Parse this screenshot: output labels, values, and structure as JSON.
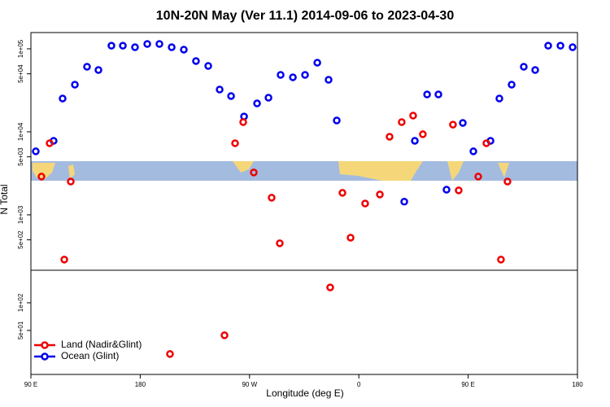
{
  "chart_data": [
    {
      "type": "scatter",
      "title": "10N-20N May (Ver 11.1)   2014-09-06 to 2023-04-30",
      "ylabel": "N Total",
      "xlabel": "Longitude (deg E)",
      "log_y": true,
      "xlim": [
        90,
        540
      ],
      "ylim": [
        215,
        157000
      ],
      "yticks": [
        {
          "value": 100000,
          "label": "1e+05"
        },
        {
          "value": 50000,
          "label": "5e+04"
        },
        {
          "value": 10000,
          "label": "1e+04"
        },
        {
          "value": 5000,
          "label": "5e+03"
        },
        {
          "value": 1000,
          "label": "1e+03"
        },
        {
          "value": 500,
          "label": "5e+02"
        }
      ],
      "series": [
        {
          "color": "#0000ee",
          "x": [
            94.0,
            108.7,
            116.1,
            126.2,
            136.2,
            145.6,
            156.3,
            165.7,
            175.7,
            185.8,
            195.8,
            205.9,
            215.9,
            225.9,
            236.0,
            245.4,
            254.8,
            265.5,
            276.2,
            285.6,
            295.6,
            305.7,
            315.7,
            325.8,
            335.1,
            341.8,
            397.4,
            406.1,
            416.2,
            425.5,
            432.2,
            445.6,
            454.3,
            468.4,
            475.7,
            485.8,
            495.8,
            505.2,
            515.9,
            526.0,
            536.0
          ],
          "values": [
            5820,
            7800,
            25200,
            37000,
            60800,
            55600,
            109000,
            109000,
            104600,
            114500,
            114500,
            104600,
            97800,
            71300,
            62200,
            32300,
            27000,
            15300,
            22000,
            25800,
            48500,
            45400,
            48500,
            68100,
            42400,
            13700,
            1440,
            7800,
            28200,
            28200,
            2010,
            12800,
            5820,
            7800,
            25200,
            37000,
            60800,
            55600,
            109000,
            109000,
            104600
          ]
        },
        {
          "color": "#ee0000",
          "x": [
            98.7,
            105.4,
            122.8,
            117.5,
            258.1,
            264.8,
            273.5,
            288.2,
            294.9,
            346.5,
            353.2,
            365.2,
            377.3,
            385.3,
            395.3,
            404.7,
            412.7,
            437.5,
            442.2,
            458.3,
            465.0,
            482.4,
            477.0
          ],
          "values": [
            2890,
            7290,
            2520,
            289,
            7290,
            13100,
            3240,
            1610,
            454,
            1840,
            531,
            1370,
            1760,
            8730,
            13100,
            15700,
            9350,
            12200,
            1970,
            2890,
            7290,
            2520,
            289
          ]
        }
      ]
    },
    {
      "type": "scatter",
      "log_y": true,
      "xlim": [
        90,
        540
      ],
      "ylim": [
        16.6,
        226
      ],
      "legend": "bottom-left",
      "xticks": [
        {
          "value": 90,
          "label": "90 E"
        },
        {
          "value": 180,
          "label": "180"
        },
        {
          "value": 270,
          "label": "90 W"
        },
        {
          "value": 360,
          "label": "0"
        },
        {
          "value": 450,
          "label": "90 E"
        },
        {
          "value": 540,
          "label": "180"
        }
      ],
      "yticks": [
        {
          "value": 100,
          "label": "1e+02"
        },
        {
          "value": 50,
          "label": "5e+01"
        }
      ],
      "series": [
        {
          "name": "Land (Nadir&Glint)",
          "color": "#ee0000",
          "x": [
            204.5,
            249.4,
            336.4
          ],
          "values": [
            27.7,
            44.3,
            147
          ]
        },
        {
          "name": "Ocean (Glint)",
          "color": "#0000ee",
          "x": [],
          "values": []
        }
      ]
    }
  ]
}
